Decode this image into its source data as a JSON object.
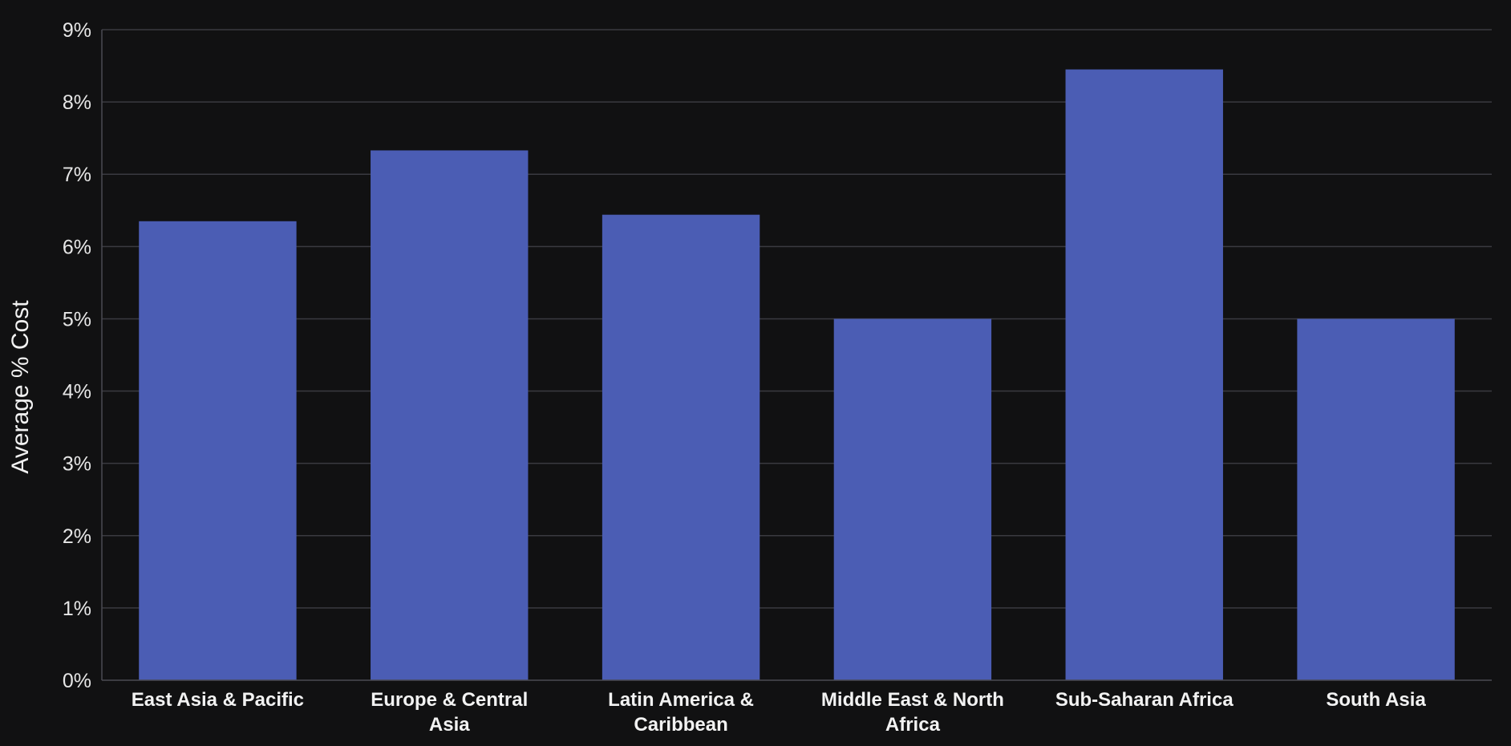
{
  "chart_data": {
    "type": "bar",
    "title": "",
    "xlabel": "",
    "ylabel": "Average % Cost",
    "categories": [
      [
        "East Asia & Pacific"
      ],
      [
        "Europe & Central",
        "Asia"
      ],
      [
        "Latin America &",
        "Caribbean"
      ],
      [
        "Middle East & North",
        "Africa"
      ],
      [
        "Sub-Saharan Africa"
      ],
      [
        "South Asia"
      ]
    ],
    "values": [
      6.35,
      7.33,
      6.44,
      5.0,
      8.45,
      5.0
    ],
    "ylim": [
      0,
      9
    ],
    "yticks": [
      "0%",
      "1%",
      "2%",
      "3%",
      "4%",
      "5%",
      "6%",
      "7%",
      "8%",
      "9%"
    ],
    "grid": true,
    "legend": "none",
    "colors": {
      "bar": "#4b5db4",
      "background": "#111112",
      "grid": "#3a3a40"
    }
  }
}
